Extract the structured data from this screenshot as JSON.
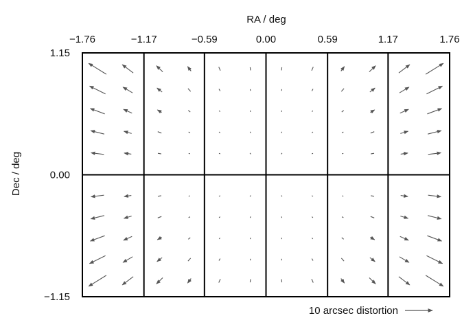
{
  "chart_data": {
    "type": "quiver",
    "xlabel": "RA / deg",
    "ylabel": "Dec / deg",
    "xlim": [
      -1.76,
      1.76
    ],
    "ylim": [
      -1.15,
      1.15
    ],
    "x_ticks": [
      "−1.76",
      "−1.17",
      "−0.59",
      "0.00",
      "0.59",
      "1.17",
      "1.76"
    ],
    "y_ticks": [
      "1.15",
      "0.00",
      "−1.15"
    ],
    "x_tick_values": [
      -1.76,
      -1.17,
      -0.59,
      0.0,
      0.59,
      1.17,
      1.76
    ],
    "y_tick_values": [
      1.15,
      0.0,
      -1.15
    ],
    "ccd_boundaries_ra": [
      -1.17,
      -0.59,
      0.0,
      0.59,
      1.17
    ],
    "ccd_boundaries_dec": [
      0.0
    ],
    "grid": false,
    "legend": {
      "text": "10 arcsec distortion",
      "arrow_length_arcsec": 10,
      "placement": "below-right"
    },
    "vector_field": {
      "description": "radial distortion, magnitude increases with distance from field centre",
      "ra_centres": [
        -1.615,
        -1.325,
        -1.02,
        -0.735,
        -0.445,
        -0.15,
        0.15,
        0.445,
        0.735,
        1.02,
        1.325,
        1.615
      ],
      "dec_centres": [
        1.0,
        0.8,
        0.6,
        0.4,
        0.2,
        -0.2,
        -0.4,
        -0.6,
        -0.8,
        -1.0
      ],
      "radial_coefficient_arcsec_per_deg2": 1.1
    },
    "colors": {
      "arrows": "#555555",
      "frame": "#000000",
      "text": "#111111"
    }
  }
}
